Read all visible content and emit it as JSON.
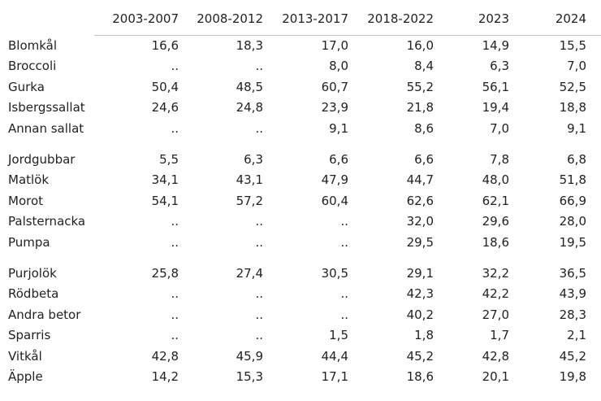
{
  "table": {
    "columns": [
      "2003-2007",
      "2008-2012",
      "2013-2017",
      "2018-2022",
      "2023",
      "2024"
    ],
    "rows": [
      {
        "label": "Blomkål",
        "values": [
          "16,6",
          "18,3",
          "17,0",
          "16,0",
          "14,9",
          "15,5"
        ]
      },
      {
        "label": "Broccoli",
        "values": [
          "..",
          "..",
          "8,0",
          "8,4",
          "6,3",
          "7,0"
        ]
      },
      {
        "label": "Gurka",
        "values": [
          "50,4",
          "48,5",
          "60,7",
          "55,2",
          "56,1",
          "52,5"
        ]
      },
      {
        "label": "Isbergssallat",
        "values": [
          "24,6",
          "24,8",
          "23,9",
          "21,8",
          "19,4",
          "18,8"
        ]
      },
      {
        "label": "Annan sallat",
        "values": [
          "..",
          "..",
          "9,1",
          "8,6",
          "7,0",
          "9,1"
        ]
      },
      {
        "label": "Jordgubbar",
        "values": [
          "5,5",
          "6,3",
          "6,6",
          "6,6",
          "7,8",
          "6,8"
        ]
      },
      {
        "label": "Matlök",
        "values": [
          "34,1",
          "43,1",
          "47,9",
          "44,7",
          "48,0",
          "51,8"
        ]
      },
      {
        "label": "Morot",
        "values": [
          "54,1",
          "57,2",
          "60,4",
          "62,6",
          "62,1",
          "66,9"
        ]
      },
      {
        "label": "Palsternacka",
        "values": [
          "..",
          "..",
          "..",
          "32,0",
          "29,6",
          "28,0"
        ]
      },
      {
        "label": "Pumpa",
        "values": [
          "..",
          "..",
          "..",
          "29,5",
          "18,6",
          "19,5"
        ]
      },
      {
        "label": "Purjolök",
        "values": [
          "25,8",
          "27,4",
          "30,5",
          "29,1",
          "32,2",
          "36,5"
        ]
      },
      {
        "label": "Rödbeta",
        "values": [
          "..",
          "..",
          "..",
          "42,3",
          "42,2",
          "43,9"
        ]
      },
      {
        "label": "Andra betor",
        "values": [
          "..",
          "..",
          "..",
          "40,2",
          "27,0",
          "28,3"
        ]
      },
      {
        "label": "Sparris",
        "values": [
          "..",
          "..",
          "1,5",
          "1,8",
          "1,7",
          "2,1"
        ]
      },
      {
        "label": "Vitkål",
        "values": [
          "42,8",
          "45,9",
          "44,4",
          "45,2",
          "42,8",
          "45,2"
        ]
      },
      {
        "label": "Äpple",
        "values": [
          "14,2",
          "15,3",
          "17,1",
          "18,6",
          "20,1",
          "19,8"
        ]
      }
    ]
  }
}
